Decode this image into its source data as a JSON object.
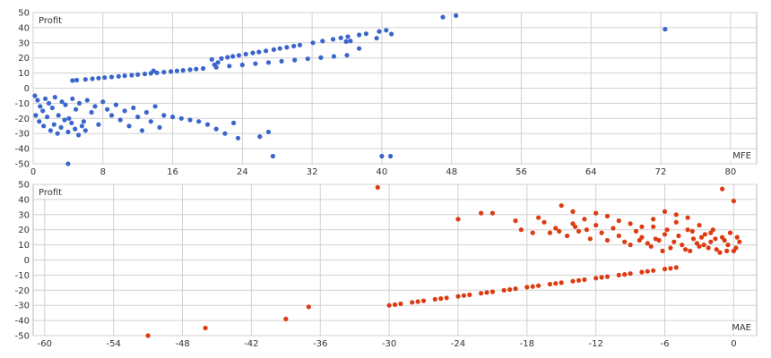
{
  "chart_data": [
    {
      "type": "scatter",
      "xlabel": "MFE",
      "ylabel": "Profit",
      "xlim": [
        0,
        83
      ],
      "ylim": [
        -50,
        50
      ],
      "xticks": [
        0,
        8,
        16,
        24,
        32,
        40,
        48,
        56,
        64,
        72,
        80
      ],
      "yticks": [
        50,
        40,
        30,
        20,
        10,
        0,
        -10,
        -20,
        -30,
        -40,
        -50
      ],
      "color": "#3a66cc",
      "grid": true,
      "series": [
        {
          "points": [
            [
              4.5,
              5
            ],
            [
              6,
              5.8
            ],
            [
              7.5,
              6.6
            ],
            [
              9,
              7.4
            ],
            [
              10.5,
              8.2
            ],
            [
              12,
              9
            ],
            [
              13.5,
              9.8
            ],
            [
              15,
              10.6
            ],
            [
              16.5,
              11.4
            ],
            [
              18,
              12.2
            ],
            [
              19.5,
              13
            ],
            [
              21,
              13.8
            ],
            [
              22.5,
              14.6
            ],
            [
              24,
              15.4
            ],
            [
              25.5,
              16.2
            ],
            [
              27,
              17
            ],
            [
              28.5,
              17.8
            ],
            [
              30,
              18.6
            ],
            [
              31.5,
              19.4
            ],
            [
              33,
              20.2
            ],
            [
              34.5,
              21
            ],
            [
              36,
              21.8
            ],
            [
              5,
              5.3
            ],
            [
              6.8,
              6.2
            ],
            [
              8.2,
              7
            ],
            [
              9.8,
              7.8
            ],
            [
              11.3,
              8.6
            ],
            [
              12.8,
              9.4
            ],
            [
              14.2,
              10.2
            ],
            [
              15.8,
              11
            ],
            [
              17.2,
              11.8
            ],
            [
              18.7,
              12.6
            ],
            [
              20.5,
              19
            ],
            [
              21.2,
              17
            ],
            [
              20.8,
              15.5
            ],
            [
              21.6,
              19.6
            ],
            [
              22.3,
              20.4
            ],
            [
              22.9,
              21
            ],
            [
              23.6,
              21.7
            ],
            [
              24.4,
              22.5
            ],
            [
              25.2,
              23.3
            ],
            [
              25.9,
              23.9
            ],
            [
              26.7,
              24.7
            ],
            [
              27.6,
              25.5
            ],
            [
              28.3,
              26.2
            ],
            [
              29.1,
              27
            ],
            [
              29.9,
              27.8
            ],
            [
              30.6,
              28.5
            ],
            [
              32.1,
              30
            ],
            [
              33.2,
              31.1
            ],
            [
              34.4,
              32.3
            ],
            [
              35.3,
              33.2
            ],
            [
              36.1,
              34
            ],
            [
              37.4,
              35.2
            ],
            [
              38.2,
              36
            ],
            [
              39.7,
              37.5
            ],
            [
              40.5,
              38.3
            ],
            [
              35.9,
              30.8
            ],
            [
              36.4,
              31.2
            ],
            [
              37.4,
              26.2
            ],
            [
              39.4,
              33
            ],
            [
              41.1,
              35.8
            ],
            [
              13.8,
              11.5
            ],
            [
              47,
              47
            ],
            [
              48.5,
              48
            ],
            [
              72.5,
              39
            ],
            [
              0.2,
              -5
            ],
            [
              0.5,
              -8
            ],
            [
              0.8,
              -12
            ],
            [
              1.1,
              -15
            ],
            [
              1.4,
              -7
            ],
            [
              1.8,
              -10
            ],
            [
              2.2,
              -13
            ],
            [
              2.5,
              -6
            ],
            [
              2.9,
              -18
            ],
            [
              3.3,
              -9
            ],
            [
              3.7,
              -11
            ],
            [
              4.1,
              -20
            ],
            [
              4.5,
              -7
            ],
            [
              4.9,
              -14
            ],
            [
              5.3,
              -10
            ],
            [
              5.8,
              -22
            ],
            [
              6.2,
              -8
            ],
            [
              6.7,
              -16
            ],
            [
              7.1,
              -12
            ],
            [
              7.5,
              -24
            ],
            [
              0.3,
              -18
            ],
            [
              0.7,
              -22
            ],
            [
              1.2,
              -25
            ],
            [
              1.6,
              -19
            ],
            [
              2.0,
              -28
            ],
            [
              2.4,
              -24
            ],
            [
              2.8,
              -30
            ],
            [
              3.2,
              -26
            ],
            [
              3.6,
              -21
            ],
            [
              4.0,
              -29
            ],
            [
              4.4,
              -23
            ],
            [
              4.8,
              -27
            ],
            [
              5.2,
              -31
            ],
            [
              5.6,
              -25
            ],
            [
              6.0,
              -28
            ],
            [
              8.0,
              -9
            ],
            [
              8.5,
              -14
            ],
            [
              9.0,
              -18
            ],
            [
              9.5,
              -11
            ],
            [
              10.0,
              -21
            ],
            [
              10.5,
              -15
            ],
            [
              11.0,
              -25
            ],
            [
              11.5,
              -13
            ],
            [
              12.0,
              -19
            ],
            [
              12.5,
              -28
            ],
            [
              13.0,
              -16
            ],
            [
              13.5,
              -22
            ],
            [
              14.0,
              -12
            ],
            [
              14.5,
              -26
            ],
            [
              15.0,
              -18
            ],
            [
              16,
              -19
            ],
            [
              17,
              -20
            ],
            [
              18,
              -21
            ],
            [
              19,
              -22
            ],
            [
              20,
              -24
            ],
            [
              21,
              -27
            ],
            [
              22,
              -30
            ],
            [
              23,
              -23
            ],
            [
              23.5,
              -33
            ],
            [
              26,
              -32
            ],
            [
              27,
              -29
            ],
            [
              27.5,
              -45
            ],
            [
              4,
              -50
            ],
            [
              40,
              -45
            ],
            [
              41,
              -45
            ]
          ]
        }
      ]
    },
    {
      "type": "scatter",
      "xlabel": "MAE",
      "ylabel": "Profit",
      "xlim": [
        -61,
        2
      ],
      "ylim": [
        -50,
        50
      ],
      "xticks": [
        -60,
        -54,
        -48,
        -42,
        -36,
        -30,
        -24,
        -18,
        -12,
        -6,
        0
      ],
      "yticks": [
        50,
        40,
        30,
        20,
        10,
        0,
        -10,
        -20,
        -30,
        -40,
        -50
      ],
      "color": "#dd3b12",
      "grid": true,
      "series": [
        {
          "points": [
            [
              -30,
              -30
            ],
            [
              -29,
              -29
            ],
            [
              -28,
              -28
            ],
            [
              -27,
              -27
            ],
            [
              -26,
              -26
            ],
            [
              -25,
              -25
            ],
            [
              -24,
              -24
            ],
            [
              -23,
              -23
            ],
            [
              -22,
              -22
            ],
            [
              -21,
              -21
            ],
            [
              -20,
              -20
            ],
            [
              -19,
              -19
            ],
            [
              -18,
              -18
            ],
            [
              -17,
              -17
            ],
            [
              -16,
              -16
            ],
            [
              -15,
              -15
            ],
            [
              -14,
              -14
            ],
            [
              -13,
              -13
            ],
            [
              -12,
              -12
            ],
            [
              -11,
              -11
            ],
            [
              -10,
              -10
            ],
            [
              -9,
              -9
            ],
            [
              -8,
              -8
            ],
            [
              -7,
              -7
            ],
            [
              -6,
              -6
            ],
            [
              -5,
              -5
            ],
            [
              -29.5,
              -29.5
            ],
            [
              -27.5,
              -27.5
            ],
            [
              -25.5,
              -25.5
            ],
            [
              -23.5,
              -23.5
            ],
            [
              -21.5,
              -21.5
            ],
            [
              -19.5,
              -19.5
            ],
            [
              -17.5,
              -17.5
            ],
            [
              -15.5,
              -15.5
            ],
            [
              -13.5,
              -13.5
            ],
            [
              -11.5,
              -11.5
            ],
            [
              -9.5,
              -9.5
            ],
            [
              -7.5,
              -7.5
            ],
            [
              -5.5,
              -5.5
            ],
            [
              -51,
              -50
            ],
            [
              -46,
              -45
            ],
            [
              -39,
              -39
            ],
            [
              -37,
              -31
            ],
            [
              -31,
              48
            ],
            [
              -24,
              27
            ],
            [
              -22,
              31
            ],
            [
              -21,
              31
            ],
            [
              -19,
              26
            ],
            [
              -17,
              28
            ],
            [
              -15,
              36
            ],
            [
              -14,
              32
            ],
            [
              -13,
              27
            ],
            [
              -12,
              31
            ],
            [
              -11,
              29
            ],
            [
              -10,
              26
            ],
            [
              -9,
              24
            ],
            [
              -8,
              22
            ],
            [
              -7,
              27
            ],
            [
              -6,
              32
            ],
            [
              -5,
              30
            ],
            [
              -4,
              28
            ],
            [
              -3,
              23
            ],
            [
              -2,
              18
            ],
            [
              -1,
              47
            ],
            [
              0,
              39
            ],
            [
              -16,
              18
            ],
            [
              -15.5,
              21
            ],
            [
              -14.5,
              16
            ],
            [
              -14,
              24
            ],
            [
              -13.5,
              19
            ],
            [
              -12.5,
              14
            ],
            [
              -12,
              23
            ],
            [
              -11.5,
              18
            ],
            [
              -10.5,
              21
            ],
            [
              -10,
              16
            ],
            [
              -9.5,
              12
            ],
            [
              -8.5,
              19
            ],
            [
              -8,
              15
            ],
            [
              -7.5,
              11
            ],
            [
              -7,
              22
            ],
            [
              -6.5,
              13
            ],
            [
              -6,
              17
            ],
            [
              -5.5,
              8
            ],
            [
              -5,
              25
            ],
            [
              -4.5,
              10
            ],
            [
              -4,
              20
            ],
            [
              -3.5,
              14
            ],
            [
              -3,
              9
            ],
            [
              -2.5,
              17
            ],
            [
              -2,
              12
            ],
            [
              -1.5,
              7
            ],
            [
              -1,
              15
            ],
            [
              -0.5,
              10
            ],
            [
              0,
              6
            ],
            [
              -3.8,
              6
            ],
            [
              -3.2,
              11
            ],
            [
              -2.8,
              15
            ],
            [
              -2.2,
              8
            ],
            [
              -1.8,
              20
            ],
            [
              -1.2,
              5
            ],
            [
              -0.8,
              13
            ],
            [
              -0.3,
              18
            ],
            [
              0.2,
              8
            ],
            [
              0.5,
              12
            ],
            [
              -9,
              10
            ],
            [
              -8.2,
              13
            ],
            [
              -7.2,
              9
            ],
            [
              -6.8,
              14
            ],
            [
              -6.2,
              6
            ],
            [
              -5.8,
              20
            ],
            [
              -5.2,
              12
            ],
            [
              -4.8,
              16
            ],
            [
              -4.2,
              7
            ],
            [
              -3.6,
              19
            ],
            [
              -2.6,
              10
            ],
            [
              -1.6,
              14
            ],
            [
              -0.6,
              6
            ],
            [
              0.3,
              15
            ],
            [
              -11,
              13
            ],
            [
              -12.8,
              20
            ],
            [
              -13.8,
              22
            ],
            [
              -15.2,
              19
            ],
            [
              -16.5,
              25
            ],
            [
              -17.5,
              18
            ],
            [
              -18.5,
              20
            ]
          ]
        }
      ]
    }
  ]
}
